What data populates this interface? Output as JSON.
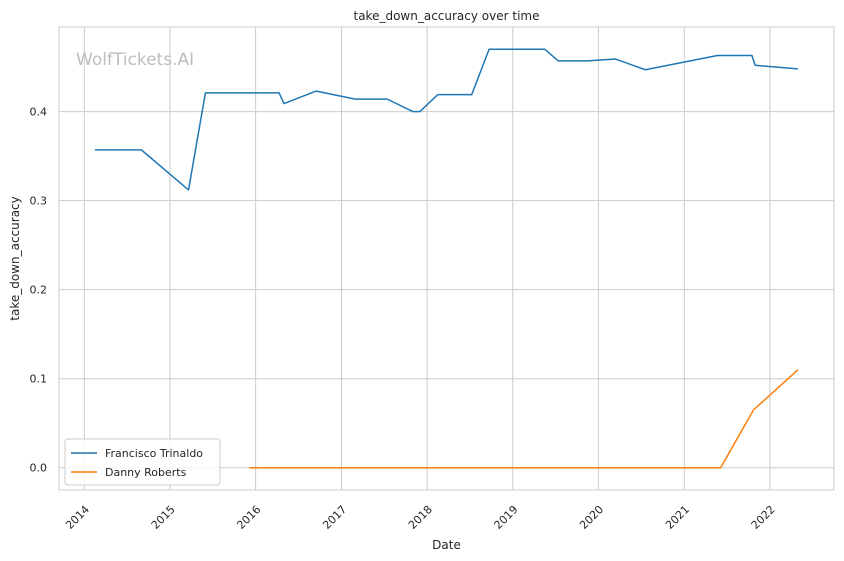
{
  "chart_data": {
    "type": "line",
    "title": "take_down_accuracy over time",
    "xlabel": "Date",
    "ylabel": "take_down_accuracy",
    "watermark": "WolfTickets.AI",
    "xlim": [
      "2013-09-15",
      "2022-10-01"
    ],
    "ylim": [
      -0.025,
      0.495
    ],
    "x_ticks": [
      "2014-01-01",
      "2015-01-01",
      "2016-01-01",
      "2017-01-01",
      "2018-01-01",
      "2019-01-01",
      "2020-01-01",
      "2021-01-01",
      "2022-01-01"
    ],
    "x_tick_labels": [
      "2014",
      "2015",
      "2016",
      "2017",
      "2018",
      "2019",
      "2020",
      "2021",
      "2022"
    ],
    "y_ticks": [
      0.0,
      0.1,
      0.2,
      0.3,
      0.4
    ],
    "y_tick_labels": [
      "0.0",
      "0.1",
      "0.2",
      "0.3",
      "0.4"
    ],
    "grid": true,
    "legend_position": "lower-left",
    "series": [
      {
        "name": "Francisco Trinaldo",
        "color": "#1f77b4",
        "points": [
          [
            "2014-02-15",
            0.357
          ],
          [
            "2014-09-01",
            0.357
          ],
          [
            "2015-03-21",
            0.312
          ],
          [
            "2015-06-01",
            0.421
          ],
          [
            "2016-04-10",
            0.421
          ],
          [
            "2016-05-01",
            0.409
          ],
          [
            "2016-09-15",
            0.423
          ],
          [
            "2017-03-01",
            0.414
          ],
          [
            "2017-07-15",
            0.414
          ],
          [
            "2017-11-01",
            0.4
          ],
          [
            "2017-12-01",
            0.4
          ],
          [
            "2018-02-15",
            0.419
          ],
          [
            "2018-07-10",
            0.419
          ],
          [
            "2018-09-22",
            0.47
          ],
          [
            "2019-05-18",
            0.47
          ],
          [
            "2019-07-13",
            0.457
          ],
          [
            "2019-11-16",
            0.457
          ],
          [
            "2020-03-14",
            0.459
          ],
          [
            "2020-07-19",
            0.447
          ],
          [
            "2021-05-22",
            0.463
          ],
          [
            "2021-10-16",
            0.463
          ],
          [
            "2021-10-30",
            0.452
          ],
          [
            "2022-04-30",
            0.448
          ]
        ]
      },
      {
        "name": "Danny Roberts",
        "color": "#ff7f0e",
        "points": [
          [
            "2015-12-05",
            0.0
          ],
          [
            "2021-06-05",
            0.0
          ],
          [
            "2021-10-23",
            0.065
          ],
          [
            "2022-04-30",
            0.11
          ]
        ]
      }
    ]
  }
}
